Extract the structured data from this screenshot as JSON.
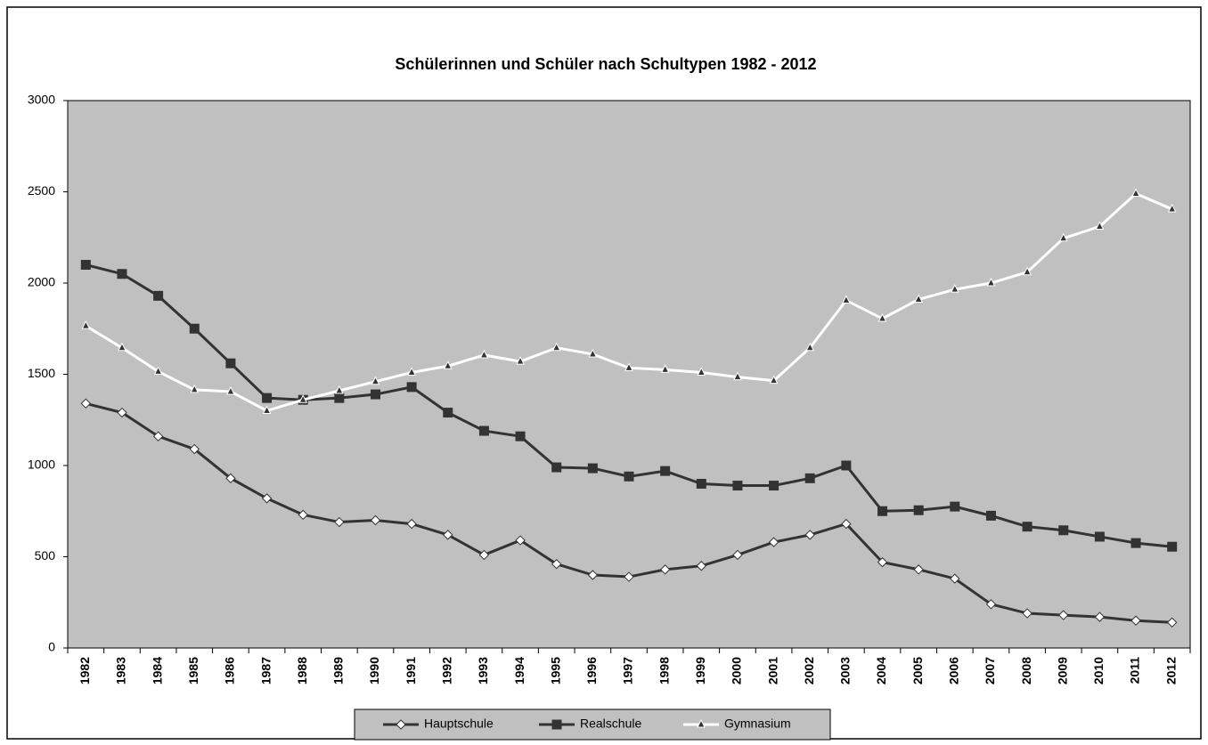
{
  "chart_data": {
    "type": "line",
    "title": "Schülerinnen und Schüler nach Schultypen 1982 - 2012",
    "categories": [
      "1982",
      "1983",
      "1984",
      "1985",
      "1986",
      "1987",
      "1988",
      "1989",
      "1990",
      "1991",
      "1992",
      "1993",
      "1994",
      "1995",
      "1996",
      "1997",
      "1998",
      "1999",
      "2000",
      "2001",
      "2002",
      "2003",
      "2004",
      "2005",
      "2006",
      "2007",
      "2008",
      "2009",
      "2010",
      "2011",
      "2012"
    ],
    "series": [
      {
        "name": "Hauptschule",
        "color": "#333333",
        "marker": "diamond",
        "marker_fill": "#ffffff",
        "values": [
          1340,
          1290,
          1160,
          1090,
          930,
          820,
          730,
          690,
          700,
          680,
          620,
          510,
          590,
          460,
          400,
          390,
          430,
          450,
          510,
          580,
          620,
          680,
          470,
          430,
          380,
          240,
          190,
          180,
          170,
          150,
          140
        ]
      },
      {
        "name": "Realschule",
        "color": "#333333",
        "marker": "square",
        "marker_fill": "#333333",
        "values": [
          2100,
          2050,
          1930,
          1750,
          1560,
          1370,
          1360,
          1370,
          1390,
          1430,
          1290,
          1190,
          1160,
          990,
          985,
          940,
          970,
          900,
          890,
          890,
          930,
          1000,
          750,
          755,
          775,
          725,
          665,
          645,
          610,
          575,
          555
        ]
      },
      {
        "name": "Gymnasium",
        "color": "#ffffff",
        "marker": "triangle",
        "marker_fill": "#333333",
        "values": [
          1765,
          1645,
          1515,
          1415,
          1405,
          1300,
          1360,
          1410,
          1460,
          1510,
          1545,
          1605,
          1570,
          1645,
          1610,
          1535,
          1525,
          1510,
          1485,
          1465,
          1645,
          1905,
          1805,
          1910,
          1965,
          2000,
          2060,
          2245,
          2310,
          2490,
          2405
        ]
      }
    ],
    "ylim": [
      0,
      3000
    ],
    "yticks": [
      0,
      500,
      1000,
      1500,
      2000,
      2500,
      3000
    ],
    "plot_background": "#c0c0c0",
    "legend": "bottom"
  }
}
